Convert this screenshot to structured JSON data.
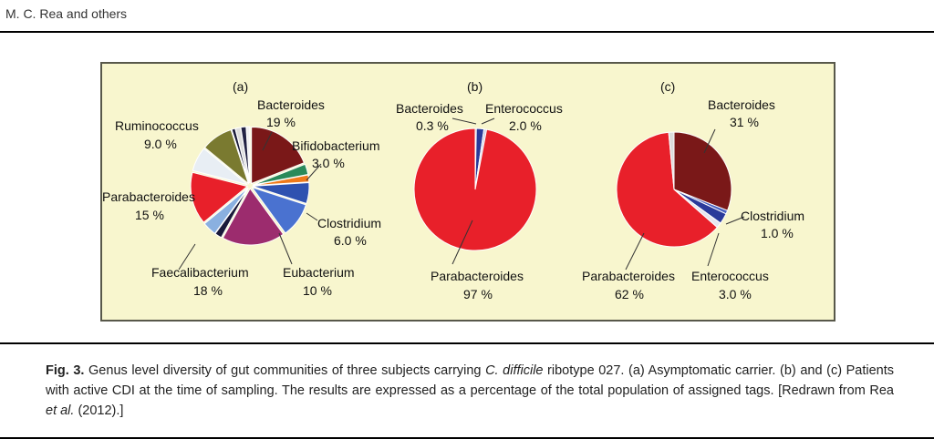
{
  "running_head": "M. C. Rea and others",
  "caption": {
    "label": "Fig. 3.",
    "part1": " Genus level diversity of gut communities of three subjects carrying ",
    "species_italic": "C. difficile",
    "part2": " ribotype 027. (a) Asymptomatic carrier. (b) and (c) Patients with active CDI at the time of sampling. The results are expressed as a percentage of the total population of assigned tags. [Redrawn from Rea ",
    "etal_italic": "et al.",
    "part3": " (2012).]"
  },
  "colors": {
    "box_background": "#f8f6ce",
    "box_border": "#58584a",
    "Bacteroides": "#7a1818",
    "Parabacteroides": "#e8202a",
    "Enterococcus": "#2a3a9a",
    "Clostridium": "#3a62c0",
    "Faecalibacterium": "#9c2c6e",
    "Ruminococcus": "#7a7a30",
    "Bifidobacterium": "#2a8a5a",
    "Eubacterium": "#3a62c0"
  },
  "chart_data": [
    {
      "type": "pie",
      "panel": "(a)",
      "slices": [
        {
          "label": "Bacteroides",
          "value": "19 %",
          "pct": 19,
          "color": "#7a1818"
        },
        {
          "label": "Bifidobacterium",
          "value": "3.0 %",
          "pct": 3.0,
          "color": "#2a8a5a"
        },
        {
          "label": "",
          "value": "",
          "pct": 2,
          "color": "#f07a1a"
        },
        {
          "label": "Clostridium",
          "value": "6.0 %",
          "pct": 6.0,
          "color": "#2f52b0"
        },
        {
          "label": "Eubacterium",
          "value": "10 %",
          "pct": 10,
          "color": "#4a72d0"
        },
        {
          "label": "Faecalibacterium",
          "value": "18 %",
          "pct": 18,
          "color": "#9c2c6e"
        },
        {
          "label": "",
          "value": "",
          "pct": 2,
          "color": "#1a1a3a"
        },
        {
          "label": "",
          "value": "",
          "pct": 4,
          "color": "#8ab0e0"
        },
        {
          "label": "Parabacteroides",
          "value": "15 %",
          "pct": 15,
          "color": "#e8202a"
        },
        {
          "label": "",
          "value": "",
          "pct": 7,
          "color": "#e8eef4"
        },
        {
          "label": "Ruminococcus",
          "value": "9.0 %",
          "pct": 9.0,
          "color": "#7a7a30"
        },
        {
          "label": "",
          "value": "",
          "pct": 1,
          "color": "#1a1a3a"
        },
        {
          "label": "",
          "value": "",
          "pct": 1.5,
          "color": "#dcdcdc"
        },
        {
          "label": "",
          "value": "",
          "pct": 1.5,
          "color": "#222244"
        },
        {
          "label": "",
          "value": "",
          "pct": 1,
          "color": "#f0f0f0"
        }
      ]
    },
    {
      "type": "pie",
      "panel": "(b)",
      "slices": [
        {
          "label": "Bacteroides",
          "value": "0.3 %",
          "pct": 0.3,
          "color": "#7a1818"
        },
        {
          "label": "Enterococcus",
          "value": "2.0 %",
          "pct": 2.0,
          "color": "#2a3a9a"
        },
        {
          "label": "",
          "value": "",
          "pct": 0.7,
          "color": "#cfcfe6"
        },
        {
          "label": "Parabacteroides",
          "value": "97 %",
          "pct": 97,
          "color": "#e8202a"
        }
      ]
    },
    {
      "type": "pie",
      "panel": "(c)",
      "slices": [
        {
          "label": "Bacteroides",
          "value": "31 %",
          "pct": 31,
          "color": "#7a1818"
        },
        {
          "label": "Clostridium",
          "value": "1.0 %",
          "pct": 1.0,
          "color": "#4a62c0"
        },
        {
          "label": "Enterococcus",
          "value": "3.0 %",
          "pct": 3.0,
          "color": "#2a3a9a"
        },
        {
          "label": "",
          "value": "",
          "pct": 1.5,
          "color": "#e6e6f0"
        },
        {
          "label": "Parabacteroides",
          "value": "62 %",
          "pct": 62,
          "color": "#e8202a"
        },
        {
          "label": "",
          "value": "",
          "pct": 1.5,
          "color": "#dcdcdc"
        }
      ]
    }
  ]
}
